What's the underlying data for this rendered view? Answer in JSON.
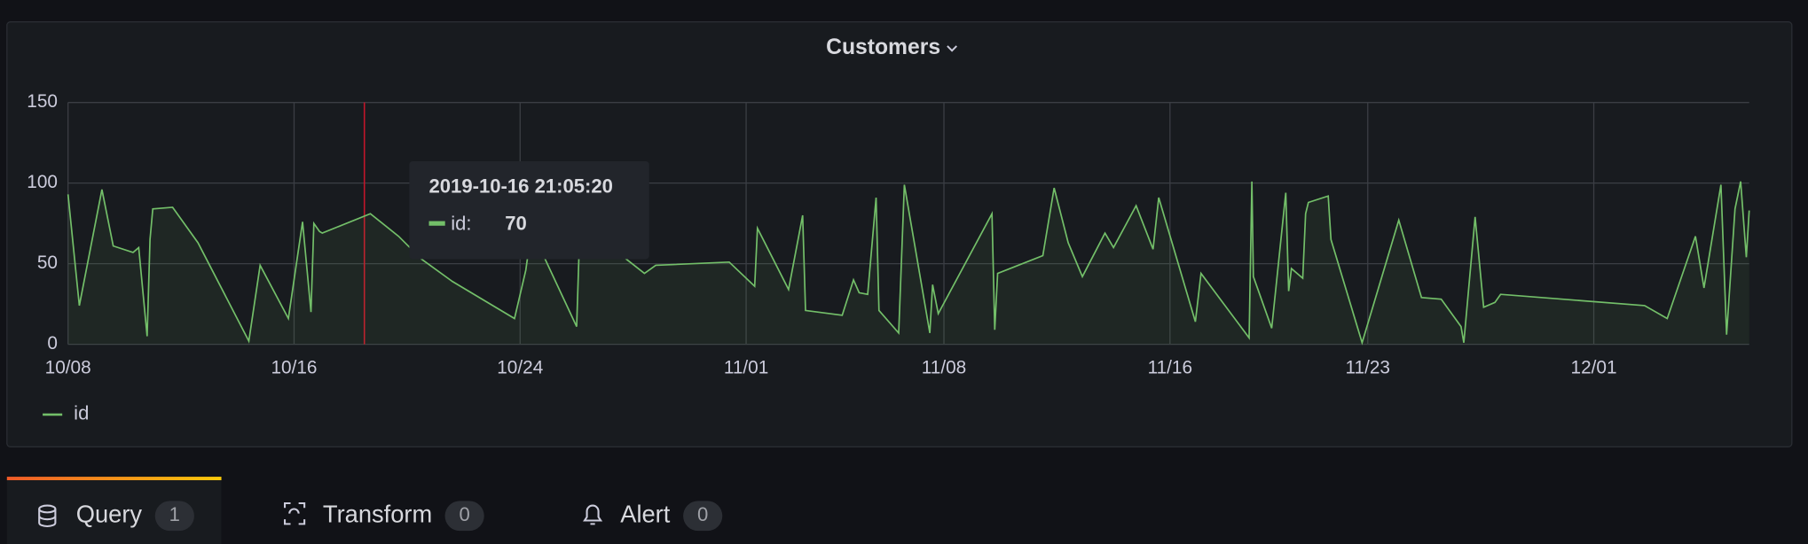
{
  "chart_data": {
    "type": "line",
    "title": "Customers",
    "x": [
      0,
      0.4,
      1.2,
      1.6,
      2.3,
      2.5,
      2.8,
      2.9,
      3.0,
      3.7,
      4.6,
      6.4,
      6.8,
      7.8,
      8.3,
      8.6,
      8.7,
      8.9,
      9.0,
      10.7,
      11.7,
      12.5,
      13.6,
      15.8,
      16.2,
      16.4,
      18.0,
      18.1,
      19.6,
      20.4,
      20.8,
      23.4,
      24.3,
      24.4,
      25.5,
      26.0,
      26.1,
      27.4,
      27.8,
      28.0,
      28.3,
      28.6,
      28.7,
      29.4,
      29.6,
      30.5,
      30.6,
      30.8,
      32.7,
      32.8,
      32.9,
      34.5,
      34.9,
      35.4,
      35.9,
      36.7,
      37.0,
      37.8,
      38.4,
      38.6,
      39.9,
      40.1,
      41.8,
      41.9,
      41.95,
      42.6,
      43.1,
      43.2,
      43.3,
      43.7,
      43.8,
      43.9,
      44.6,
      44.7,
      45.8,
      47.1,
      47.9,
      48.6,
      49.3,
      49.4,
      49.8,
      50.1,
      50.5,
      50.7,
      55.8,
      56.6,
      57.6,
      57.9,
      58.5,
      58.7,
      59.0,
      59.2,
      59.4,
      59.5
    ],
    "series": [
      {
        "name": "id",
        "color": "#73bf69",
        "values": [
          93,
          24,
          96,
          61,
          57,
          60,
          5,
          65,
          84,
          85,
          63,
          2,
          49,
          16,
          76,
          20,
          75,
          70,
          69,
          81,
          67,
          53,
          39,
          16,
          46,
          71,
          11,
          64,
          55,
          44,
          49,
          51,
          36,
          72,
          34,
          80,
          21,
          18,
          40,
          32,
          31,
          91,
          21,
          7,
          99,
          7,
          37,
          19,
          81,
          9,
          44,
          55,
          97,
          63,
          42,
          69,
          60,
          86,
          59,
          91,
          14,
          44,
          4,
          101,
          42,
          10,
          94,
          33,
          47,
          41,
          81,
          88,
          92,
          65,
          1,
          77,
          29,
          28,
          11,
          1,
          79,
          23,
          26,
          31,
          24,
          16,
          67,
          35,
          99,
          6,
          84,
          101,
          54,
          83
        ]
      }
    ],
    "xlim": [
      0,
      59.5
    ],
    "xticks": [
      {
        "value": 0,
        "label": "10/08"
      },
      {
        "value": 8,
        "label": "10/16"
      },
      {
        "value": 16,
        "label": "10/24"
      },
      {
        "value": 24,
        "label": "11/01"
      },
      {
        "value": 31,
        "label": "11/08"
      },
      {
        "value": 39,
        "label": "11/16"
      },
      {
        "value": 46,
        "label": "11/23"
      },
      {
        "value": 54,
        "label": "12/01"
      }
    ],
    "ylim": [
      0,
      150
    ],
    "yticks": [
      0,
      50,
      100,
      150
    ],
    "grid": true,
    "legend": "bottom-left"
  },
  "tooltip": {
    "time": "2019-10-16 21:05:20",
    "label": "id:",
    "value": 70
  },
  "tabs": [
    {
      "label": "Query",
      "count": 1
    },
    {
      "label": "Transform",
      "count": 0
    },
    {
      "label": "Alert",
      "count": 0
    }
  ]
}
